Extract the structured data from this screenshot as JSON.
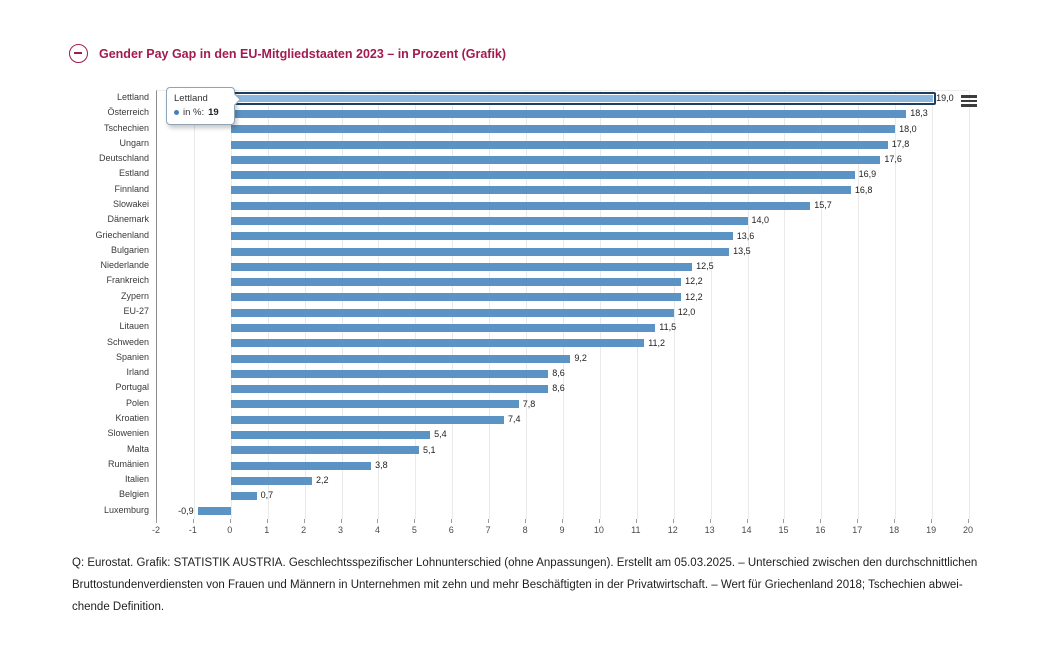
{
  "header": {
    "collapse_icon": "minus-circle-icon"
  },
  "chart_data": {
    "type": "bar",
    "orientation": "horizontal",
    "title": "Gender Pay Gap in den EU-Mitgliedstaaten 2023 – in Prozent (Grafik)",
    "series_name": "in %",
    "categories": [
      "Lettland",
      "Österreich",
      "Tschechien",
      "Ungarn",
      "Deutschland",
      "Estland",
      "Finnland",
      "Slowakei",
      "Dänemark",
      "Griechenland",
      "Bulgarien",
      "Niederlande",
      "Frankreich",
      "Zypern",
      "EU-27",
      "Litauen",
      "Schweden",
      "Spanien",
      "Irland",
      "Portugal",
      "Polen",
      "Kroatien",
      "Slowenien",
      "Malta",
      "Rumänien",
      "Italien",
      "Belgien",
      "Luxemburg"
    ],
    "values": [
      19.0,
      18.3,
      18.0,
      17.8,
      17.6,
      16.9,
      16.8,
      15.7,
      14.0,
      13.6,
      13.5,
      12.5,
      12.2,
      12.2,
      12.0,
      11.5,
      11.2,
      9.2,
      8.6,
      8.6,
      7.8,
      7.4,
      5.4,
      5.1,
      3.8,
      2.2,
      0.7,
      -0.9
    ],
    "value_labels": [
      "19,0",
      "18,3",
      "18,0",
      "17,8",
      "17,6",
      "16,9",
      "16,8",
      "15,7",
      "14,0",
      "13,6",
      "13,5",
      "12,5",
      "12,2",
      "12,2",
      "12,0",
      "11,5",
      "11,2",
      "9,2",
      "8,6",
      "8,6",
      "7,8",
      "7,4",
      "5,4",
      "5,1",
      "3,8",
      "2,2",
      "0,7",
      "-0,9"
    ],
    "xlim": [
      -2,
      20
    ],
    "x_ticks": [
      -2,
      -1,
      0,
      1,
      2,
      3,
      4,
      5,
      6,
      7,
      8,
      9,
      10,
      11,
      12,
      13,
      14,
      15,
      16,
      17,
      18,
      19,
      20
    ],
    "grid": true,
    "legend_position": "none",
    "bar_color": "#5b93c5",
    "highlight": {
      "category": "Lettland",
      "index": 0,
      "fill": "#8cb8e0",
      "border": "#1d3e60"
    },
    "tooltip": {
      "title": "Lettland",
      "series_label": "in  %:",
      "value": "19",
      "bullet_color": "#4a7fb5"
    }
  },
  "menu": {
    "icon": "hamburger-menu-icon"
  },
  "footer": {
    "lines": [
      "Q: Eurostat. Grafik: STATISTIK AUSTRIA. Geschlechtsspezifischer Lohnunterschied (ohne Anpassungen). Erstellt am 05.03.2025. – Unterschied zwischen den durchschnittlichen",
      "Bruttostundenverdiensten von Frauen und Männern in Unternehmen mit zehn und mehr Beschäftigten in der Privatwirtschaft. – Wert für Griechenland 2018; Tschechien abwei-",
      "chende Definition."
    ]
  }
}
